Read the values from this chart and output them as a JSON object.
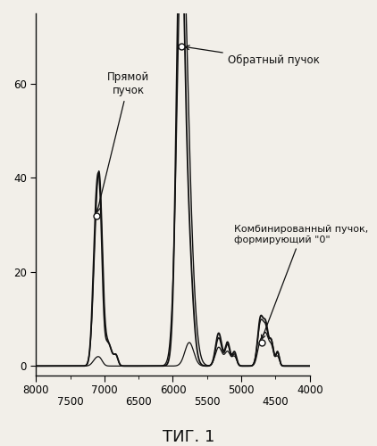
{
  "fig_label": "ΤИГ. 1",
  "xlim": [
    8000,
    4000
  ],
  "ylim": [
    -2,
    75
  ],
  "xticks_major": [
    8000,
    7000,
    6000,
    5000,
    4000
  ],
  "xticks_minor": [
    7500,
    6500,
    5500,
    4500
  ],
  "yticks": [
    0,
    20,
    40,
    60
  ],
  "annotation1": "Прямой\nпучок",
  "annotation2": "Обратный пучок",
  "annotation3": "Комбинированный пучок,\nформирующий \"0\"",
  "bg_color": "#f2efe9",
  "line_color": "#111111"
}
